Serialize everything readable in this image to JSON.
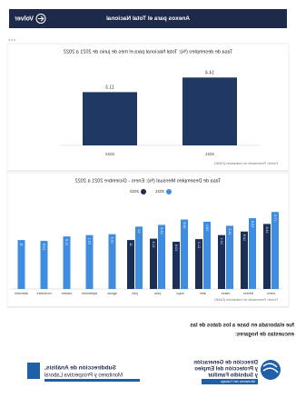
{
  "header": {
    "title": "Anexos para el Total Nacional",
    "back_button": "Volver"
  },
  "chart_data": [
    {
      "type": "bar",
      "title": "Tasa de desempleo (%): Total Nacional para el mes de junio de 2021 a 2022",
      "categories": [
        "2021",
        "2022"
      ],
      "values": [
        14.4,
        11.3
      ],
      "color": "#1f3864",
      "ylim": [
        0,
        16
      ],
      "source": "Fuente: Presentación de indicadores (DANE)"
    },
    {
      "type": "grouped-bar",
      "title": "Tasa de Desempleo Mensual (%): Enero - Diciembre 2021 a 2022",
      "categories": [
        "enero",
        "febrero",
        "marzo",
        "abril",
        "mayo",
        "junio",
        "julio",
        "agosto",
        "septiembre",
        "octubre",
        "noviembre",
        "diciembre"
      ],
      "series": [
        {
          "name": "2021",
          "color": "#3f8de0",
          "values": [
            17.3,
            15.9,
            14.2,
            15.1,
            15.6,
            14.4,
            14.0,
            12.3,
            12.1,
            11.8,
            10.8,
            11.0
          ]
        },
        {
          "name": "2022",
          "color": "#1b2f57",
          "values": [
            14.6,
            12.9,
            12.1,
            11.2,
            10.6,
            11.3,
            11.0,
            null,
            null,
            null,
            null,
            null
          ]
        }
      ],
      "ylim": [
        0,
        20
      ],
      "source": "Fuente: Presentación de indicadores (DANE)"
    }
  ],
  "footer": {
    "lines": [
      "fue elaborada en base a los datos de las",
      "encuestas de hogares:"
    ],
    "logo_left": {
      "lines": [
        "Dirección de Generación",
        "y Protección del Empleo",
        "y Subsidio Familiar"
      ],
      "caption": "Ministerio del Trabajo"
    },
    "logo_right": {
      "lines": [
        "Subdirección de Análisis,",
        "Monitoreo y Prospectiva Laboral"
      ]
    }
  }
}
